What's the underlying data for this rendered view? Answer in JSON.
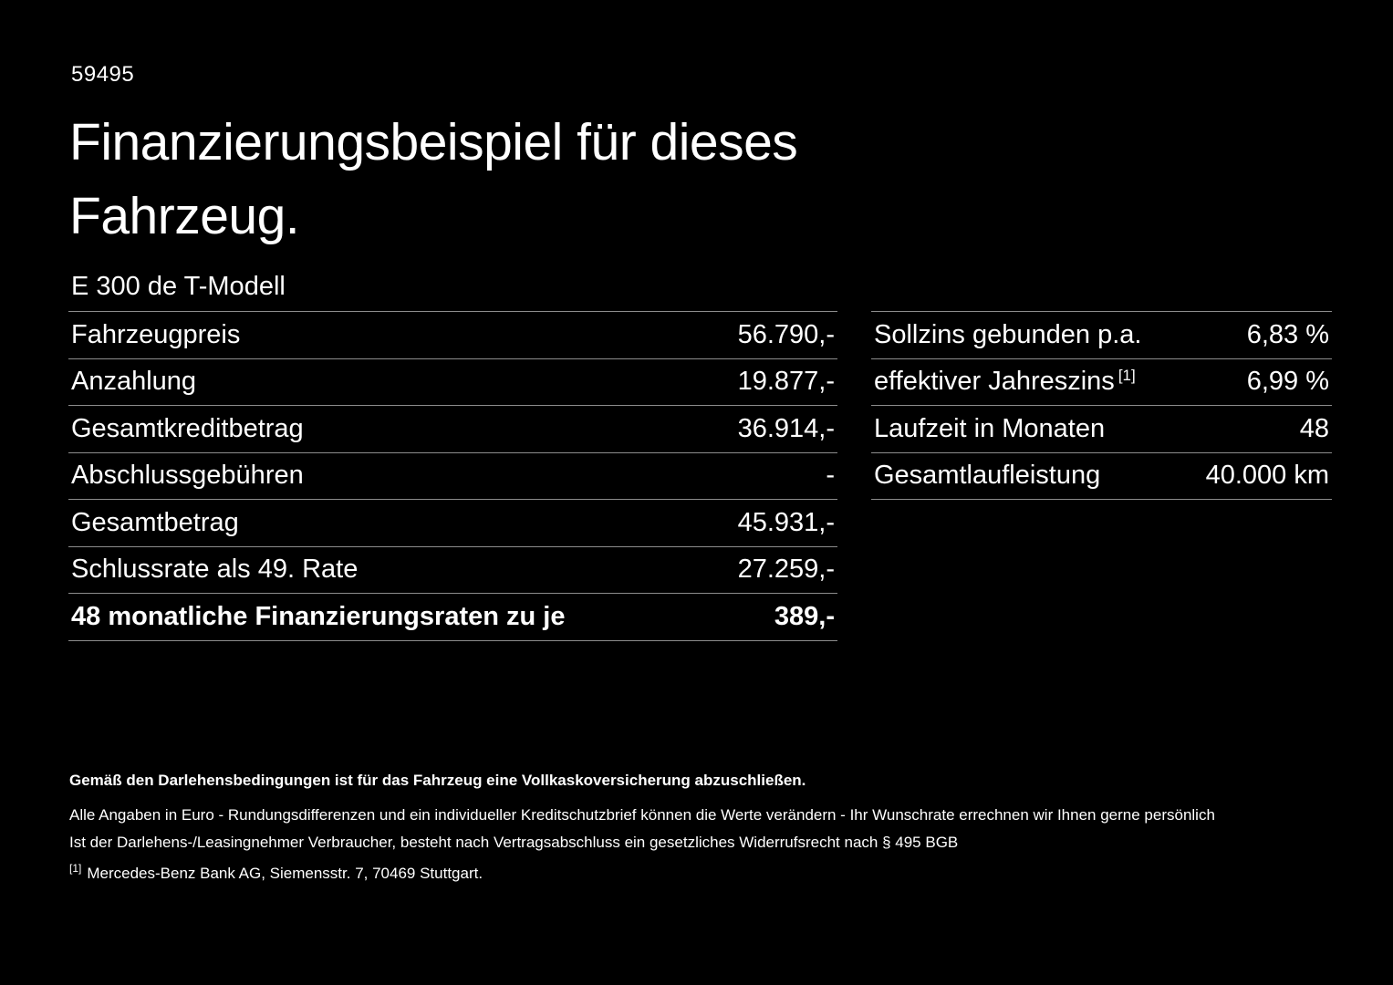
{
  "page": {
    "id_number": "59495",
    "title_line1": "Finanzierungsbeispiel für dieses",
    "title_line2": "Fahrzeug.",
    "model": "E 300 de T-Modell"
  },
  "left_table": {
    "rows": [
      {
        "label": "Fahrzeugpreis",
        "value": "56.790,-"
      },
      {
        "label": "Anzahlung",
        "value": "19.877,-"
      },
      {
        "label": "Gesamtkreditbetrag",
        "value": "36.914,-"
      },
      {
        "label": "Abschlussgebühren",
        "value": "-"
      },
      {
        "label": "Gesamtbetrag",
        "value": "45.931,-"
      },
      {
        "label": "Schlussrate als 49. Rate",
        "value": "27.259,-"
      },
      {
        "label": "48 monatliche Finanzierungsraten zu je",
        "value": "389,-"
      }
    ]
  },
  "right_table": {
    "rows": [
      {
        "label": "Sollzins gebunden p.a.",
        "sup": "",
        "value": "6,83 %"
      },
      {
        "label": "effektiver Jahreszins",
        "sup": "[1]",
        "value": "6,99 %"
      },
      {
        "label": "Laufzeit in Monaten",
        "sup": "",
        "value": "48"
      },
      {
        "label": "Gesamtlaufleistung",
        "sup": "",
        "value": "40.000 km"
      }
    ]
  },
  "footer": {
    "bold_note": "Gemäß den Darlehensbedingungen ist für das Fahrzeug eine Vollkaskoversicherung abzuschließen.",
    "note2": "Alle Angaben in Euro - Rundungsdifferenzen und ein individueller Kreditschutzbrief können die Werte verändern - Ihr Wunschrate errechnen wir Ihnen gerne persönlich",
    "note3": "Ist der Darlehens-/Leasingnehmer Verbraucher, besteht nach Vertragsabschluss ein gesetzliches Widerrufsrecht nach § 495 BGB",
    "footnote_marker": "[1]",
    "footnote_text": "Mercedes-Benz Bank AG, Siemensstr. 7, 70469 Stuttgart."
  },
  "colors": {
    "background": "#000000",
    "text": "#ffffff",
    "divider": "#8c8c8c"
  }
}
